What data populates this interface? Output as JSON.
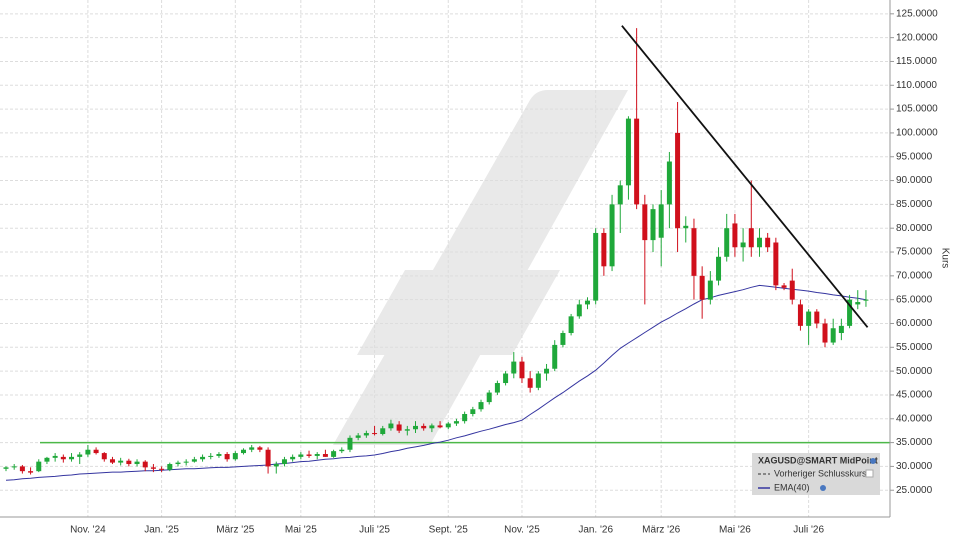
{
  "chart_data": {
    "type": "candlestick",
    "y_axis_label": "Kurs",
    "categories": [
      null,
      null,
      null,
      null,
      null,
      null,
      null,
      null,
      null,
      null,
      "Nov. '24",
      null,
      null,
      null,
      null,
      null,
      null,
      null,
      null,
      "Jan. '25",
      null,
      null,
      null,
      null,
      null,
      null,
      null,
      null,
      "März '25",
      null,
      null,
      null,
      null,
      null,
      null,
      null,
      "Mai '25",
      null,
      null,
      null,
      null,
      null,
      null,
      null,
      null,
      "Juli '25",
      null,
      null,
      null,
      null,
      null,
      null,
      null,
      null,
      "Sept. '25",
      null,
      null,
      null,
      null,
      null,
      null,
      null,
      null,
      "Nov. '25",
      null,
      null,
      null,
      null,
      null,
      null,
      null,
      null,
      "Jan. '26",
      null,
      null,
      null,
      null,
      null,
      null,
      null,
      "März '26",
      null,
      null,
      null,
      null,
      null,
      null,
      null,
      null,
      "Mai '26",
      null,
      null,
      null,
      null,
      null,
      null,
      null,
      null,
      "Juli '26",
      null,
      null,
      null,
      null,
      null,
      null,
      null
    ],
    "series": [
      {
        "name": "XAGUSD@SMART MidPoint",
        "open": [
          29.5,
          29.8,
          30.0,
          29.0,
          29.0,
          31.0,
          31.8,
          32.0,
          31.5,
          32.0,
          32.5,
          33.5,
          32.8,
          31.5,
          30.8,
          31.2,
          30.5,
          31.0,
          29.8,
          29.5,
          29.3,
          30.5,
          30.8,
          31.0,
          31.5,
          32.0,
          32.2,
          32.6,
          31.5,
          32.8,
          33.5,
          34.0,
          33.5,
          30.0,
          30.5,
          31.5,
          32.0,
          32.5,
          32.2,
          32.6,
          32.0,
          33.2,
          33.5,
          36.0,
          36.5,
          37.0,
          36.8,
          38.0,
          38.8,
          37.5,
          37.8,
          38.5,
          38.0,
          38.6,
          38.2,
          39.0,
          39.5,
          41.0,
          42.0,
          43.5,
          45.5,
          47.5,
          49.5,
          52.0,
          48.5,
          46.5,
          49.5,
          50.5,
          55.5,
          58.0,
          61.5,
          64.0,
          64.8,
          79.0,
          72.0,
          85.0,
          89.0,
          103.0,
          85.0,
          77.5,
          78.0,
          85.0,
          100.0,
          80.0,
          80.0,
          70.0,
          65.0,
          69.0,
          74.0,
          81.0,
          76.0,
          80.0,
          76.0,
          78.0,
          77.0,
          68.0,
          69.0,
          64.0,
          59.5,
          62.5,
          60.0,
          56.0,
          58.0,
          59.5,
          64.0,
          65.0
        ],
        "high": [
          30.0,
          30.5,
          30.3,
          29.8,
          31.5,
          32.0,
          32.8,
          32.5,
          32.8,
          33.0,
          34.5,
          34.0,
          33.0,
          32.0,
          31.8,
          31.6,
          31.5,
          31.3,
          30.5,
          30.0,
          30.8,
          31.2,
          31.5,
          32.0,
          32.5,
          32.8,
          33.0,
          33.0,
          33.2,
          33.8,
          34.5,
          34.3,
          34.0,
          31.0,
          32.0,
          32.5,
          33.0,
          33.3,
          33.0,
          33.5,
          33.5,
          34.0,
          36.5,
          37.0,
          37.5,
          38.5,
          38.5,
          39.8,
          39.5,
          38.5,
          39.5,
          39.0,
          39.0,
          39.5,
          39.3,
          40.0,
          41.5,
          42.5,
          44.0,
          46.0,
          48.0,
          50.0,
          54.0,
          53.0,
          50.0,
          50.0,
          51.5,
          56.5,
          58.5,
          62.0,
          65.0,
          65.5,
          80.0,
          80.0,
          87.0,
          90.0,
          103.5,
          122.0,
          87.0,
          85.0,
          88.0,
          96.0,
          106.5,
          82.5,
          82.0,
          72.0,
          71.0,
          76.0,
          83.0,
          83.0,
          80.0,
          90.0,
          80.0,
          79.0,
          78.0,
          68.5,
          71.5,
          65.0,
          63.0,
          63.0,
          61.0,
          61.0,
          61.0,
          66.0,
          67.0,
          67.0
        ],
        "low": [
          29.0,
          29.3,
          28.5,
          28.3,
          28.8,
          30.5,
          31.0,
          30.8,
          31.0,
          30.5,
          32.0,
          32.5,
          31.0,
          30.5,
          30.2,
          30.0,
          30.0,
          29.0,
          28.8,
          28.8,
          29.0,
          30.0,
          30.2,
          30.8,
          31.0,
          31.5,
          31.8,
          31.0,
          31.2,
          32.5,
          33.0,
          33.0,
          28.5,
          28.5,
          30.0,
          31.0,
          31.5,
          31.8,
          31.5,
          32.0,
          31.8,
          32.8,
          33.0,
          35.5,
          36.0,
          36.5,
          36.5,
          37.5,
          37.0,
          36.5,
          37.0,
          37.5,
          37.2,
          38.0,
          37.8,
          38.5,
          39.0,
          40.5,
          41.5,
          43.0,
          45.0,
          47.0,
          48.5,
          47.5,
          45.5,
          46.0,
          48.0,
          50.0,
          55.0,
          57.5,
          61.0,
          63.0,
          64.0,
          70.0,
          71.0,
          79.0,
          86.0,
          84.0,
          64.0,
          75.0,
          72.0,
          80.0,
          75.0,
          77.0,
          65.0,
          61.0,
          64.0,
          68.0,
          73.0,
          74.0,
          73.0,
          74.0,
          74.0,
          75.0,
          67.0,
          67.0,
          64.0,
          58.5,
          55.5,
          59.0,
          55.0,
          55.5,
          56.5,
          59.0,
          63.0,
          63.5
        ],
        "close": [
          29.8,
          30.0,
          29.0,
          28.7,
          31.0,
          31.8,
          32.2,
          31.5,
          32.0,
          32.5,
          33.5,
          32.8,
          31.5,
          30.8,
          31.2,
          30.5,
          31.0,
          29.8,
          29.5,
          29.3,
          30.5,
          30.8,
          31.0,
          31.5,
          32.0,
          32.2,
          32.6,
          31.5,
          32.8,
          33.5,
          34.0,
          33.5,
          30.0,
          30.5,
          31.5,
          32.0,
          32.5,
          32.2,
          32.6,
          32.0,
          33.2,
          33.5,
          36.0,
          36.5,
          37.0,
          36.8,
          38.0,
          39.0,
          37.5,
          37.8,
          38.5,
          38.0,
          38.6,
          38.2,
          39.0,
          39.5,
          41.0,
          42.0,
          43.5,
          45.5,
          47.5,
          49.5,
          52.0,
          48.5,
          46.5,
          49.5,
          50.5,
          55.5,
          58.0,
          61.5,
          64.0,
          64.8,
          79.0,
          72.0,
          85.0,
          89.0,
          103.0,
          85.0,
          77.5,
          84.0,
          85.0,
          94.0,
          80.0,
          80.5,
          70.0,
          65.0,
          69.0,
          74.0,
          80.0,
          76.0,
          77.0,
          76.0,
          78.0,
          76.0,
          68.0,
          67.5,
          65.0,
          59.5,
          62.5,
          60.0,
          56.0,
          59.0,
          59.5,
          65.0,
          64.5,
          65.0
        ]
      },
      {
        "name": "EMA(40)",
        "color": "#3535a0",
        "values": [
          27.1,
          27.2,
          27.4,
          27.5,
          27.7,
          27.8,
          27.9,
          28.1,
          28.2,
          28.4,
          28.5,
          28.6,
          28.7,
          28.8,
          28.8,
          28.9,
          29.0,
          29.1,
          29.1,
          29.2,
          29.3,
          29.4,
          29.5,
          29.5,
          29.6,
          29.7,
          29.8,
          29.8,
          29.9,
          30.0,
          30.1,
          30.2,
          30.3,
          30.5,
          30.6,
          30.8,
          31.0,
          31.1,
          31.3,
          31.5,
          31.6,
          31.8,
          31.9,
          32.1,
          32.2,
          32.4,
          32.7,
          33.1,
          33.4,
          33.8,
          34.1,
          34.4,
          34.8,
          35.1,
          35.5,
          36.0,
          36.4,
          36.9,
          37.4,
          37.8,
          38.3,
          38.8,
          39.2,
          39.7,
          40.9,
          42.0,
          43.2,
          44.4,
          45.5,
          46.7,
          47.9,
          49.0,
          50.2,
          51.7,
          53.3,
          54.8,
          55.9,
          57.0,
          58.1,
          59.2,
          60.3,
          61.2,
          62.2,
          63.1,
          64.1,
          65.0,
          65.4,
          65.9,
          66.3,
          66.7,
          67.1,
          67.6,
          68.0,
          67.8,
          67.6,
          67.4,
          67.2,
          67.0,
          66.8,
          66.5,
          66.3,
          66.0,
          65.8,
          65.5,
          65.3,
          65.0
        ]
      }
    ],
    "reference_line": {
      "name": "Vorheriger Schlusskurs",
      "style": "dashed"
    },
    "up_color": "#1fa83a",
    "down_color": "#d0101c",
    "support_level": 35,
    "support_color": "#4cb848",
    "trendline": {
      "x": [
        75.2,
        105.2
      ],
      "y": [
        122.5,
        59.2
      ],
      "color": "#111111"
    },
    "ylim": [
      19.8,
      127.9
    ],
    "yticks": [
      {
        "value": 25,
        "label": "25.0000"
      },
      {
        "value": 30,
        "label": "30.0000"
      },
      {
        "value": 35,
        "label": "35.0000"
      },
      {
        "value": 40,
        "label": "40.0000"
      },
      {
        "value": 45,
        "label": "45.0000"
      },
      {
        "value": 50,
        "label": "50.0000"
      },
      {
        "value": 55,
        "label": "55.0000"
      },
      {
        "value": 60,
        "label": "60.0000"
      },
      {
        "value": 65,
        "label": "65.0000"
      },
      {
        "value": 70,
        "label": "70.0000"
      },
      {
        "value": 75,
        "label": "75.0000"
      },
      {
        "value": 80,
        "label": "80.0000"
      },
      {
        "value": 85,
        "label": "85.0000"
      },
      {
        "value": 90,
        "label": "90.0000"
      },
      {
        "value": 95,
        "label": "95.0000"
      },
      {
        "value": 100,
        "label": "100.0000"
      },
      {
        "value": 105,
        "label": "105.0000"
      },
      {
        "value": 110,
        "label": "110.0000"
      },
      {
        "value": 115,
        "label": "115.0000"
      },
      {
        "value": 120,
        "label": "120.0000"
      },
      {
        "value": 125,
        "label": "125.0000"
      }
    ],
    "grid": true,
    "legend": "bottom-right"
  }
}
